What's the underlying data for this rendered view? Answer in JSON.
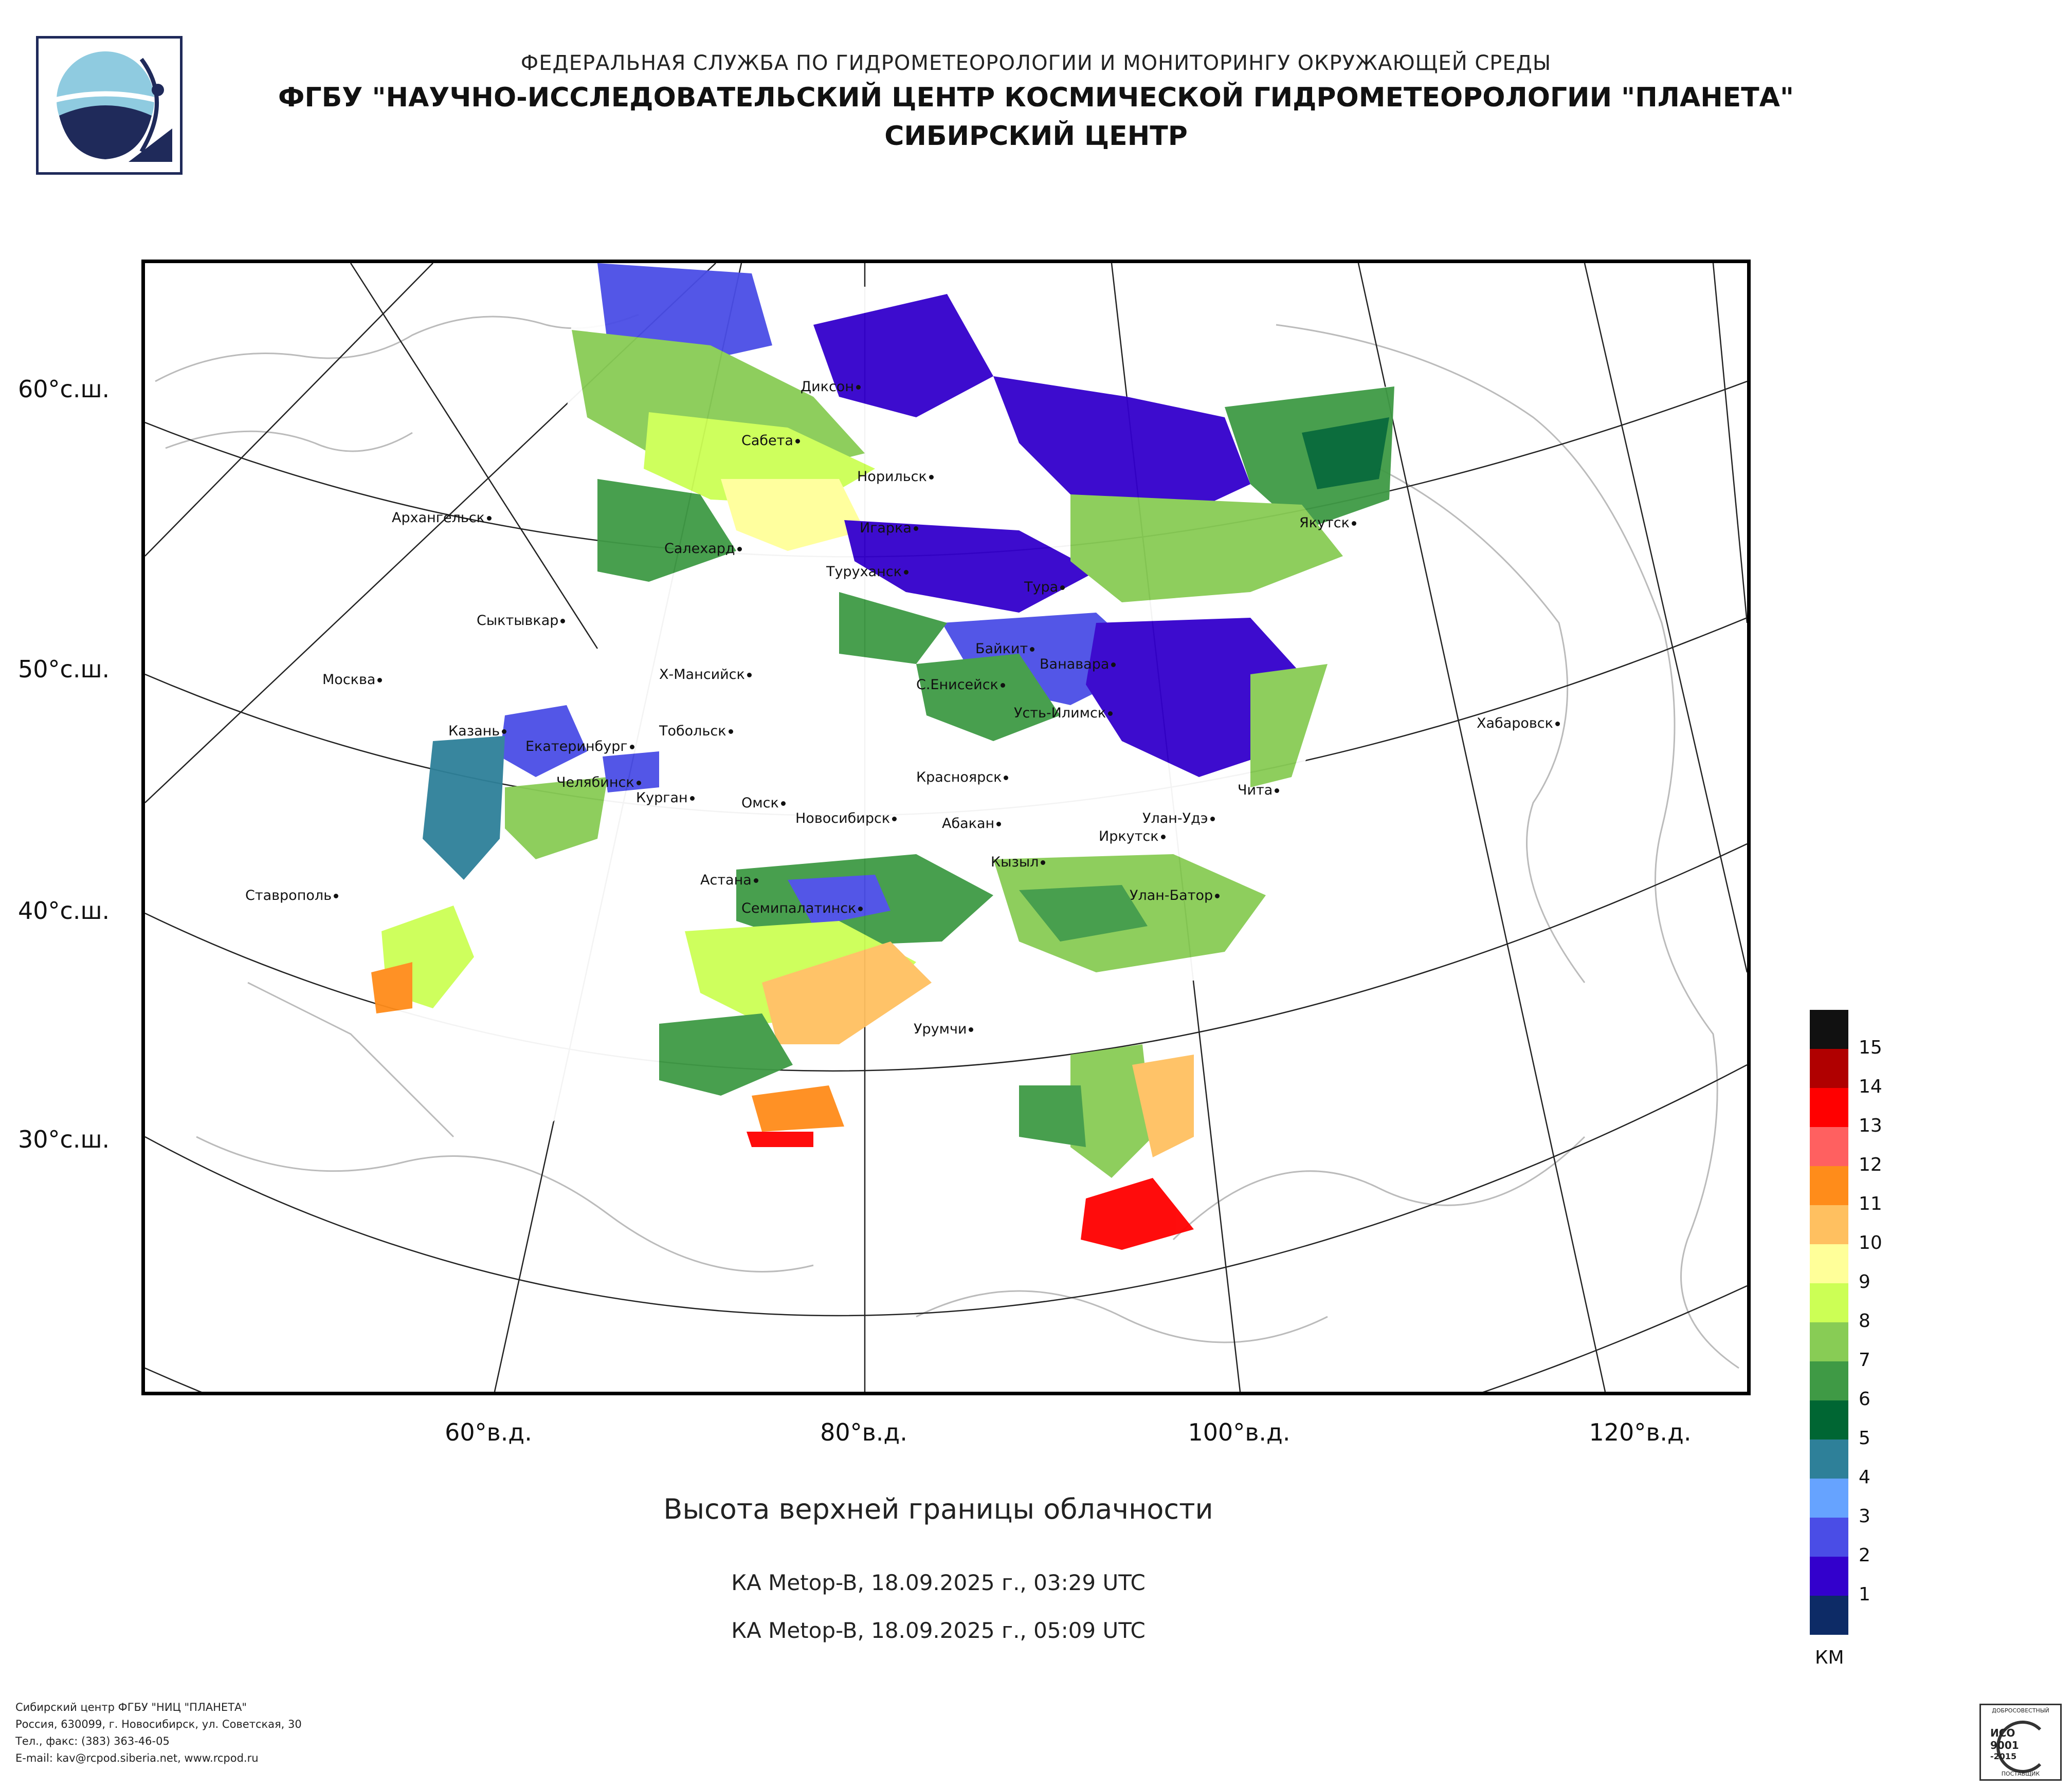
{
  "header": {
    "organization": "ФЕДЕРАЛЬНАЯ СЛУЖБА ПО ГИДРОМЕТЕОРОЛОГИИ И МОНИТОРИНГУ ОКРУЖАЮЩЕЙ СРЕДЫ",
    "institution": "ФГБУ \"НАУЧНО-ИССЛЕДОВАТЕЛЬСКИЙ ЦЕНТР КОСМИЧЕСКОЙ ГИДРОМЕТЕОРОЛОГИИ \"ПЛАНЕТА\"",
    "center": "СИБИРСКИЙ ЦЕНТР"
  },
  "map": {
    "latitude_labels": [
      "60°с.ш.",
      "50°с.ш.",
      "40°с.ш.",
      "30°с.ш."
    ],
    "longitude_labels": [
      "60°в.д.",
      "80°в.д.",
      "100°в.д.",
      "120°в.д."
    ],
    "cities": [
      {
        "name": "Архангельск"
      },
      {
        "name": "Диксон"
      },
      {
        "name": "Сабета"
      },
      {
        "name": "Норильск"
      },
      {
        "name": "Игарка"
      },
      {
        "name": "Салехард"
      },
      {
        "name": "Туруханск"
      },
      {
        "name": "Тура"
      },
      {
        "name": "Якутск"
      },
      {
        "name": "Сыктывкар"
      },
      {
        "name": "Байкит"
      },
      {
        "name": "Ванавара"
      },
      {
        "name": "Москва"
      },
      {
        "name": "Х-Мансийск"
      },
      {
        "name": "С.Енисейск"
      },
      {
        "name": "Усть-Илимск"
      },
      {
        "name": "Казань"
      },
      {
        "name": "Екатеринбург"
      },
      {
        "name": "Тобольск"
      },
      {
        "name": "Хабаровск"
      },
      {
        "name": "Челябинск"
      },
      {
        "name": "Курган"
      },
      {
        "name": "Красноярск"
      },
      {
        "name": "Омск"
      },
      {
        "name": "Новосибирск"
      },
      {
        "name": "Абакан"
      },
      {
        "name": "Улан-Удэ"
      },
      {
        "name": "Иркутск"
      },
      {
        "name": "Чита"
      },
      {
        "name": "Кызыл"
      },
      {
        "name": "Астана"
      },
      {
        "name": "Ставрополь"
      },
      {
        "name": "Семипалатинск"
      },
      {
        "name": "Улан-Батор"
      },
      {
        "name": "Урумчи"
      }
    ]
  },
  "title": "Высота верхней границы облачности",
  "passes": [
    "КА Metop-B, 18.09.2025 г., 03:29 UTC",
    "КА Metop-B, 18.09.2025 г., 05:09 UTC"
  ],
  "legend": {
    "unit": "КМ",
    "levels": [
      {
        "label": "",
        "color": "#111111"
      },
      {
        "label": "15",
        "color": "#b00000"
      },
      {
        "label": "14",
        "color": "#ff0000"
      },
      {
        "label": "13",
        "color": "#ff6060"
      },
      {
        "label": "12",
        "color": "#ff8c1a"
      },
      {
        "label": "11",
        "color": "#ffc060"
      },
      {
        "label": "10",
        "color": "#ffff99"
      },
      {
        "label": "9",
        "color": "#ccff55"
      },
      {
        "label": "8",
        "color": "#88cc55"
      },
      {
        "label": "7",
        "color": "#3f9a45"
      },
      {
        "label": "6",
        "color": "#006633"
      },
      {
        "label": "5",
        "color": "#2e8099"
      },
      {
        "label": "4",
        "color": "#66a3ff"
      },
      {
        "label": "3",
        "color": "#4a4de6"
      },
      {
        "label": "2",
        "color": "#3300cc"
      },
      {
        "label": "1",
        "color": "#0d2b66"
      }
    ]
  },
  "footer": {
    "line1": "Сибирский центр ФГБУ \"НИЦ \"ПЛАНЕТА\"",
    "line2": "Россия, 630099, г. Новосибирск, ул. Советская, 30",
    "line3": "Тел., факс: (383) 363-46-05",
    "line4": "E-mail: kav@rcpod.siberia.net, www.rcpod.ru"
  },
  "certificate": {
    "top_text": "ДОБРОСОВЕСТНЫЙ",
    "iso": "ИСО",
    "number": "9001",
    "year": "-2015",
    "bottom_text": "ПОСТАВЩИК"
  }
}
